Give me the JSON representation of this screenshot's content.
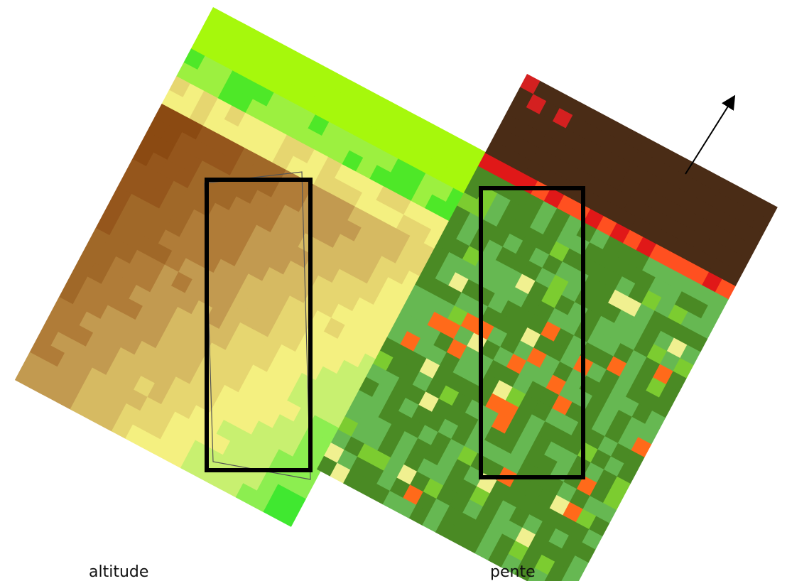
{
  "labels": {
    "left": "altitude",
    "right": "pente"
  }
}
